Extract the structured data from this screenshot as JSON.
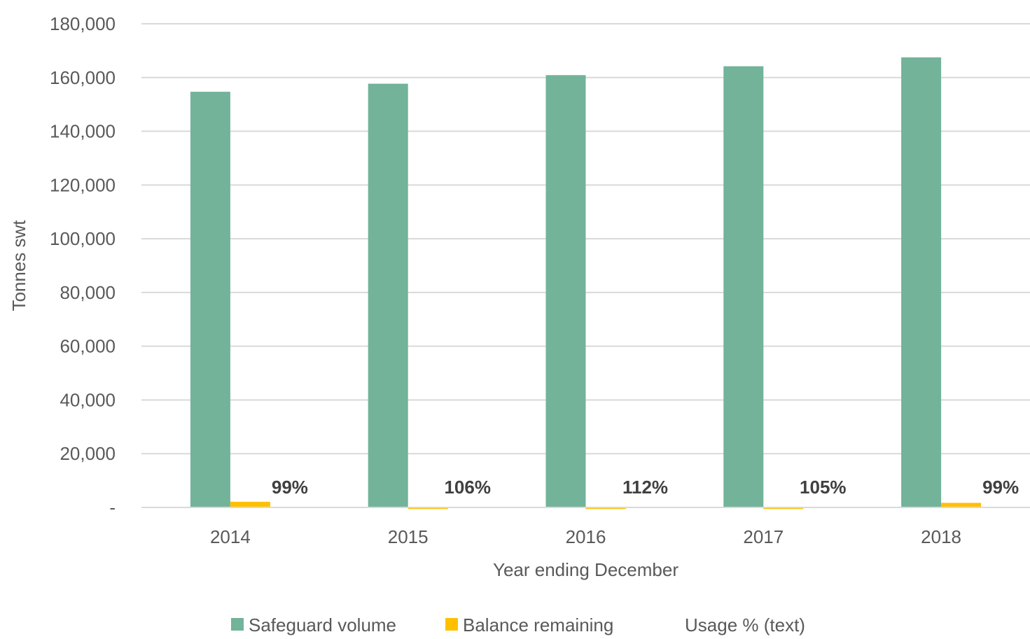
{
  "chart_data": {
    "type": "bar",
    "title": "",
    "xlabel": "Year ending December",
    "ylabel": "Tonnes swt",
    "categories": [
      "2014",
      "2015",
      "2016",
      "2017",
      "2018"
    ],
    "ylim": [
      0,
      180000
    ],
    "yticks": [
      0,
      20000,
      40000,
      60000,
      80000,
      100000,
      120000,
      140000,
      160000,
      180000
    ],
    "ytick_labels": [
      "-",
      "20,000",
      "40,000",
      "60,000",
      "80,000",
      "100,000",
      "120,000",
      "140,000",
      "160,000",
      "180,000"
    ],
    "grid": true,
    "legend_position": "bottom",
    "series": [
      {
        "name": "Safeguard volume",
        "color": "#72b39a",
        "values": [
          154700,
          157700,
          160900,
          164200,
          167500
        ]
      },
      {
        "name": "Balance remaining",
        "color": "#ffc000",
        "values": [
          2100,
          -600,
          -600,
          -600,
          1700
        ]
      }
    ],
    "data_labels": {
      "name": "Usage % (text)",
      "values": [
        "99%",
        "106%",
        "112%",
        "105%",
        "99%"
      ]
    }
  }
}
